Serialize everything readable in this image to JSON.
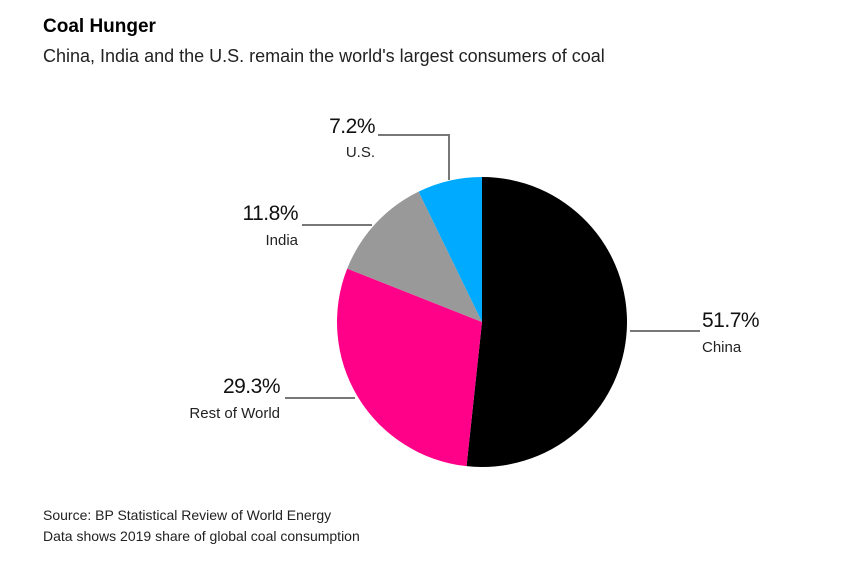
{
  "chart_data": {
    "type": "pie",
    "title": "Coal Hunger",
    "subtitle": "China, India and the U.S. remain the world's largest consumers of coal",
    "slices": [
      {
        "label": "China",
        "value": 51.7,
        "value_label": "51.7%",
        "color": "#000000"
      },
      {
        "label": "Rest of World",
        "value": 29.3,
        "value_label": "29.3%",
        "color": "#ff0089"
      },
      {
        "label": "India",
        "value": 11.8,
        "value_label": "11.8%",
        "color": "#999999"
      },
      {
        "label": "U.S.",
        "value": 7.2,
        "value_label": "7.2%",
        "color": "#00aaff"
      }
    ],
    "start": "top",
    "direction": "clockwise",
    "leader_line_color": "#777777"
  },
  "footer": {
    "source": "Source: BP Statistical Review of World Energy",
    "note": "Data shows 2019 share of global coal consumption"
  }
}
